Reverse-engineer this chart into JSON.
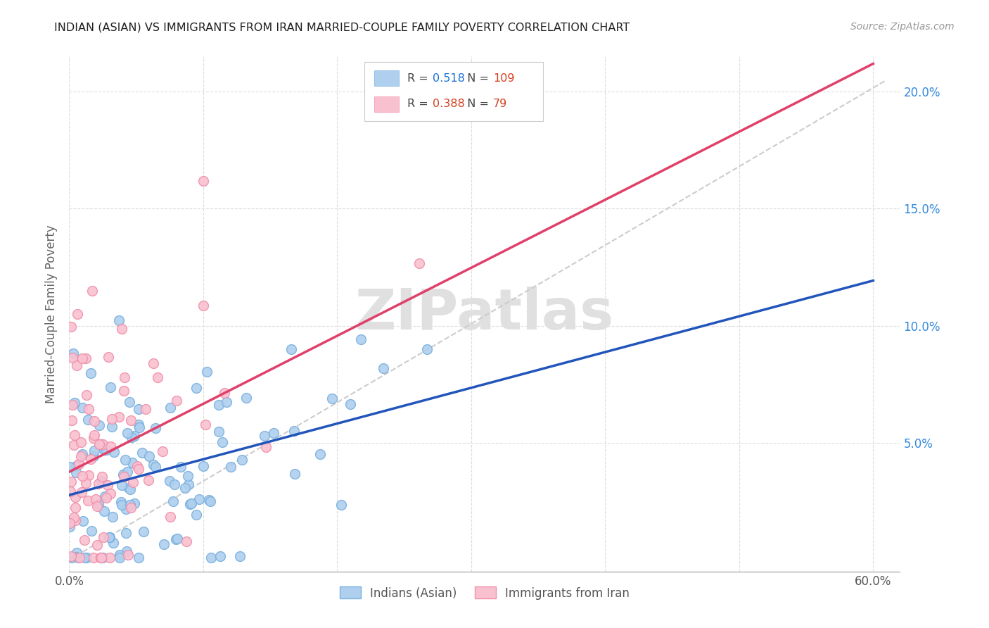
{
  "title": "INDIAN (ASIAN) VS IMMIGRANTS FROM IRAN MARRIED-COUPLE FAMILY POVERTY CORRELATION CHART",
  "source": "Source: ZipAtlas.com",
  "ylabel": "Married-Couple Family Poverty",
  "legend_label1": "Indians (Asian)",
  "legend_label2": "Immigrants from Iran",
  "R1": 0.518,
  "N1": 109,
  "R2": 0.388,
  "N2": 79,
  "color1_fill": "#aecfee",
  "color1_edge": "#7ab0de",
  "color2_fill": "#f9c0d0",
  "color2_edge": "#f090aa",
  "line_color1": "#2255bb",
  "line_color2": "#e0406a",
  "dashed_line_color": "#cccccc",
  "xlim": [
    0.0,
    0.62
  ],
  "ylim": [
    -0.005,
    0.215
  ],
  "x_ticks": [
    0.0,
    0.1,
    0.2,
    0.3,
    0.4,
    0.5,
    0.6
  ],
  "x_tick_labels_sparse": [
    "0.0%",
    "",
    "",
    "",
    "",
    "",
    "60.0%"
  ],
  "y_ticks": [
    0.05,
    0.1,
    0.15,
    0.2
  ],
  "y_tick_labels": [
    "5.0%",
    "10.0%",
    "15.0%",
    "20.0%"
  ],
  "background_color": "#ffffff",
  "grid_color": "#dddddd",
  "watermark_text": "ZIPatlas",
  "watermark_color": "#e0e0e0",
  "legend_R1_color": "#1a6fd4",
  "legend_N1_color": "#d44020",
  "legend_R2_color": "#d44020",
  "legend_N2_color": "#d44020"
}
